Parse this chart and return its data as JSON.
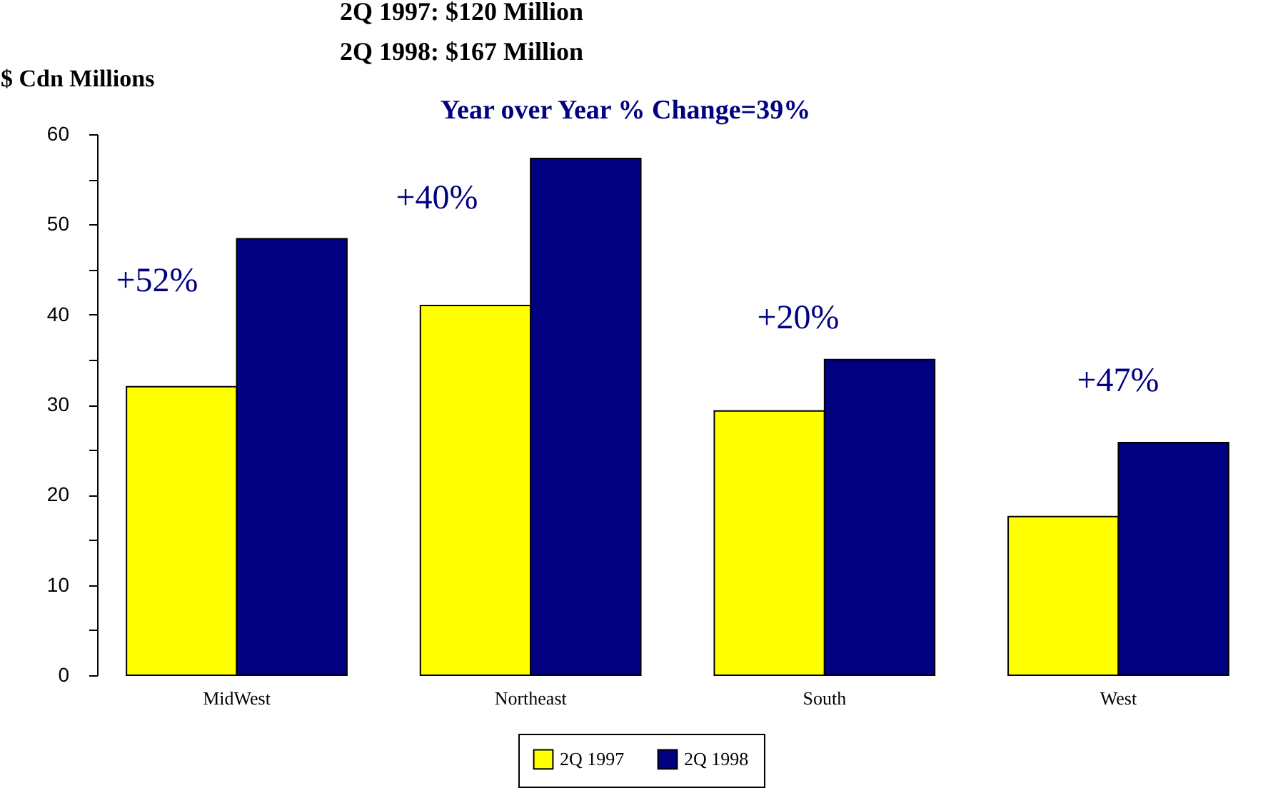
{
  "chart_data": {
    "type": "bar",
    "title": "2Q 1997: $120 Million",
    "subtitle": "2Q 1998: $167 Million",
    "ylabel": "$ Cdn Millions",
    "categories": [
      "MidWest",
      "Northeast",
      "South",
      "West"
    ],
    "series": [
      {
        "name": "2Q 1997",
        "color": "#ffff00",
        "values": [
          32.0,
          41.0,
          29.3,
          17.6
        ]
      },
      {
        "name": "2Q 1998",
        "color": "#000080",
        "values": [
          48.4,
          57.3,
          35.0,
          25.8
        ]
      }
    ],
    "annotations": [
      "Year over Year % Change=39%",
      "+52%",
      "+40%",
      "+20%",
      "+47%"
    ],
    "ylim": [
      0,
      60
    ],
    "yticks": [
      0,
      {
        "value": 5,
        "label": null
      },
      10,
      {
        "value": 15,
        "label": null
      },
      20,
      {
        "value": 25,
        "label": null
      },
      30,
      {
        "value": 35,
        "label": null
      },
      40,
      {
        "value": 45,
        "label": null
      },
      50,
      {
        "value": 55,
        "label": null
      },
      60
    ],
    "grid": false,
    "legend": "bottom"
  }
}
